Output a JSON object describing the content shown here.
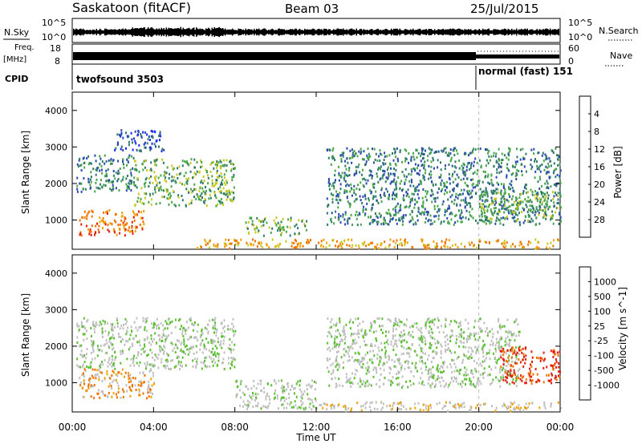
{
  "header": {
    "station": "Saskatoon (fitACF)",
    "beam": "Beam 03",
    "date": "25/Jul/2015"
  },
  "strips": {
    "nsky_label": "N.Sky",
    "nsearch_label": "N.Search",
    "freq_label_1": "Freq.",
    "freq_label_2": "[MHz]",
    "nave_label": "Nave",
    "cpid_label": "CPID",
    "nsky_ticks": [
      "10^5",
      "10^0"
    ],
    "nsearch_ticks": [
      "10^5",
      "10^0"
    ],
    "freq_ticks": [
      "18",
      "8"
    ],
    "nave_ticks": [
      "60",
      "0"
    ],
    "cpid_modes": [
      {
        "name": "twofsound 3503",
        "start_hour": 0,
        "end_hour": 20
      },
      {
        "name": "normal (fast) 151",
        "start_hour": 20,
        "end_hour": 24
      }
    ]
  },
  "x_axis": {
    "label": "Time UT",
    "ticks": [
      "00:00",
      "04:00",
      "08:00",
      "12:00",
      "16:00",
      "20:00",
      "00:00"
    ]
  },
  "chart_data": [
    {
      "type": "heatmap",
      "title": "",
      "xlabel": "Time UT",
      "ylabel": "Slant Range [km]",
      "xlim_hours": [
        0,
        24
      ],
      "ylim_km": [
        200,
        4500
      ],
      "y_ticks": [
        1000,
        2000,
        3000,
        4000
      ],
      "colorbar_label": "Power [dB]",
      "colorbar_ticks": [
        "4",
        "8",
        "12",
        "16",
        "20",
        "24",
        "28"
      ],
      "colorbar_colors": [
        "#1a2bf0",
        "#2a4ab0",
        "#2f7a6a",
        "#4aa64a",
        "#c8c820",
        "#f0a000",
        "#f07000",
        "#e02010"
      ],
      "mode_change_hour": 20,
      "echo_regions": [
        {
          "t_start": 0.2,
          "t_end": 3.0,
          "r_start": 1800,
          "r_end": 2800,
          "level": 2
        },
        {
          "t_start": 0.3,
          "t_end": 3.5,
          "r_start": 600,
          "r_end": 1300,
          "level": 6
        },
        {
          "t_start": 3.0,
          "t_end": 8.0,
          "r_start": 1400,
          "r_end": 2700,
          "level": 3
        },
        {
          "t_start": 2.0,
          "t_end": 4.5,
          "r_start": 2900,
          "r_end": 3500,
          "level": 1
        },
        {
          "t_start": 8.5,
          "t_end": 11.5,
          "r_start": 600,
          "r_end": 1100,
          "level": 3
        },
        {
          "t_start": 6.0,
          "t_end": 24.0,
          "r_start": 250,
          "r_end": 500,
          "level": 5
        },
        {
          "t_start": 12.5,
          "t_end": 24.0,
          "r_start": 900,
          "r_end": 3000,
          "level": 2
        },
        {
          "t_start": 20.0,
          "t_end": 24.0,
          "r_start": 1000,
          "r_end": 1800,
          "level": 3
        }
      ]
    },
    {
      "type": "heatmap",
      "title": "",
      "xlabel": "Time UT",
      "ylabel": "Slant Range [km]",
      "xlim_hours": [
        0,
        24
      ],
      "ylim_km": [
        200,
        4500
      ],
      "y_ticks": [
        1000,
        2000,
        3000,
        4000
      ],
      "colorbar_label": "Velocity [m s^-1]",
      "colorbar_ticks": [
        "1000",
        "500",
        "100",
        "25",
        "-25",
        "-100",
        "-500",
        "-1000"
      ],
      "colorbar_colors": [
        "#1a2bd0",
        "#2a5ab0",
        "#2f8a4a",
        "#5ac030",
        "#c0c0c0",
        "#c0c0c0",
        "#f0a000",
        "#f07000",
        "#e02010"
      ],
      "mode_change_hour": 20,
      "echo_regions": [
        {
          "t_start": 0.2,
          "t_end": 8.0,
          "r_start": 1400,
          "r_end": 2800,
          "level": 4
        },
        {
          "t_start": 0.3,
          "t_end": 4.0,
          "r_start": 600,
          "r_end": 1400,
          "level": 6
        },
        {
          "t_start": 8.0,
          "t_end": 12.0,
          "r_start": 300,
          "r_end": 1100,
          "level": 4
        },
        {
          "t_start": 12.0,
          "t_end": 24.0,
          "r_start": 250,
          "r_end": 500,
          "level": 5
        },
        {
          "t_start": 12.5,
          "t_end": 22.0,
          "r_start": 900,
          "r_end": 2800,
          "level": 4
        },
        {
          "t_start": 21.0,
          "t_end": 24.0,
          "r_start": 1000,
          "r_end": 2000,
          "level": 8
        }
      ]
    }
  ]
}
